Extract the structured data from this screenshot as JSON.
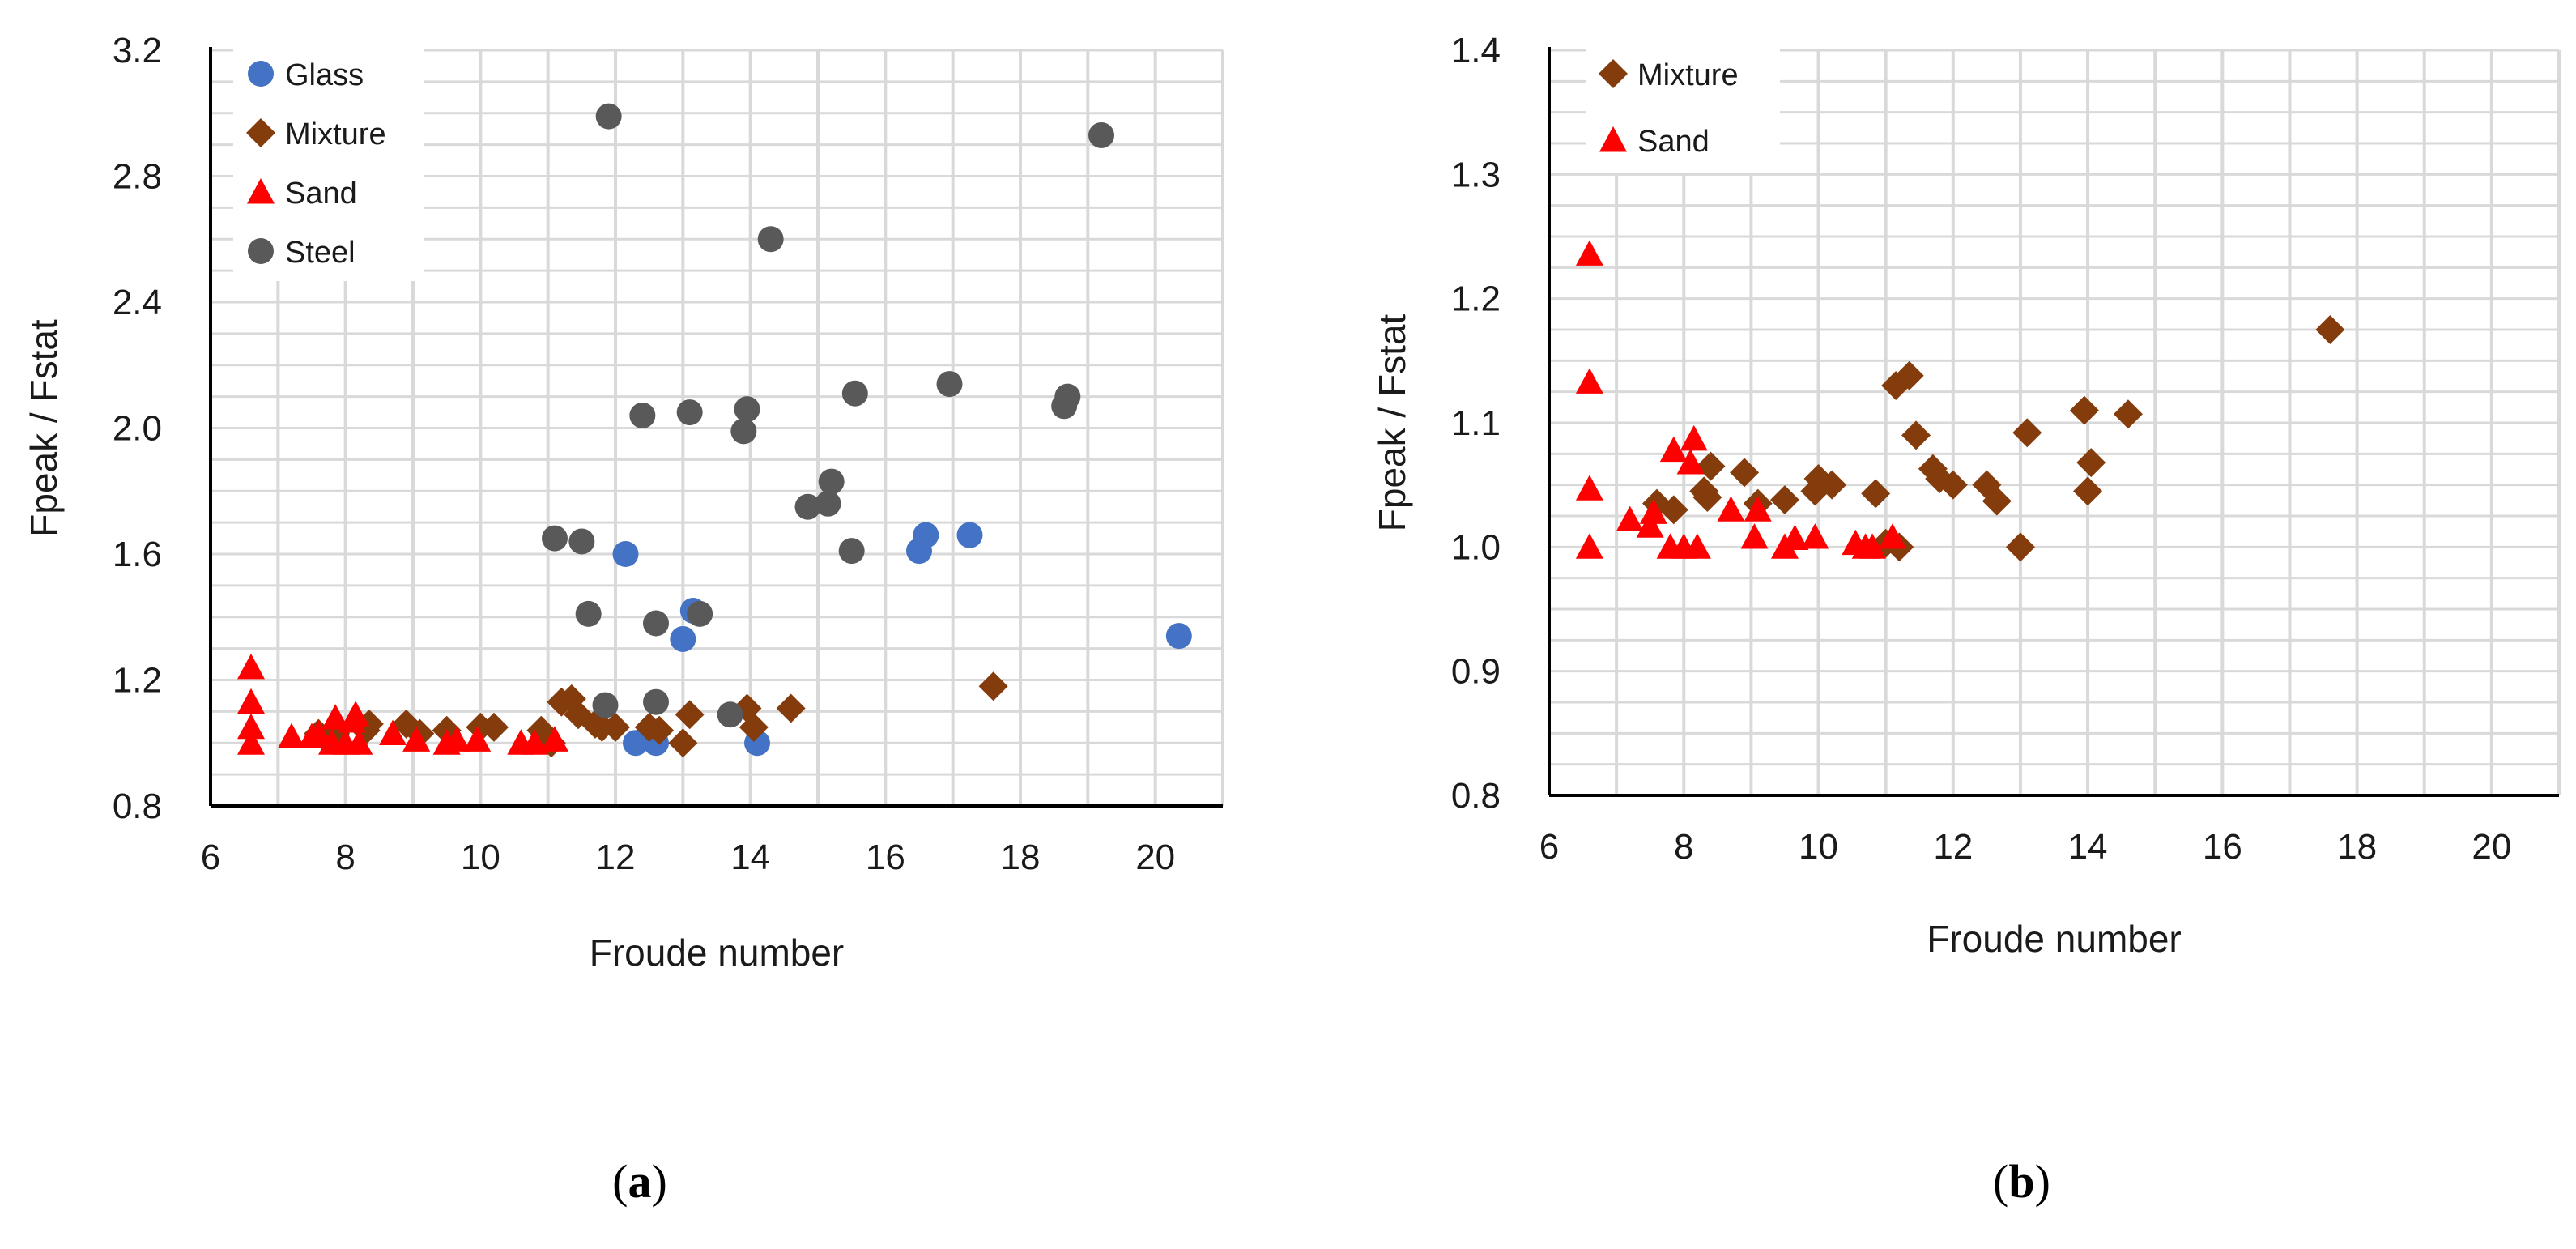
{
  "colors": {
    "Glass": "#4472c4",
    "Mixture": "#843c0c",
    "Sand": "#ff0000",
    "Steel": "#595959",
    "grid": "#d9d9d9",
    "axis": "#000000"
  },
  "chart_data": [
    {
      "type": "scatter",
      "panel_label": {
        "open": "(",
        "letter": "a",
        "close": ")"
      },
      "xlabel": "Froude number",
      "ylabel": "Fpeak / Fstat",
      "xlim": [
        6,
        21
      ],
      "ylim": [
        0.8,
        3.2
      ],
      "x_ticks": [
        6,
        8,
        10,
        12,
        14,
        16,
        18,
        20
      ],
      "x_tick_labels": [
        "6",
        "8",
        "10",
        "12",
        "14",
        "16",
        "18",
        "20"
      ],
      "y_ticks": [
        0.8,
        1.2,
        1.6,
        2.0,
        2.4,
        2.8,
        3.2
      ],
      "y_tick_labels": [
        "0.8",
        "1.2",
        "1.6",
        "2.0",
        "2.4",
        "2.8",
        "3.2"
      ],
      "x_grid_step": 1,
      "y_grid_step": 0.1,
      "legend": {
        "position": "top-left",
        "entries": [
          "Glass",
          "Mixture",
          "Sand",
          "Steel"
        ]
      },
      "series": [
        {
          "name": "Glass",
          "marker": "circle",
          "x": [
            12.15,
            13.0,
            13.15,
            12.3,
            12.6,
            14.1,
            16.5,
            16.6,
            17.25,
            20.35
          ],
          "y": [
            1.6,
            1.33,
            1.42,
            1.0,
            1.0,
            1.0,
            1.61,
            1.66,
            1.66,
            1.34
          ]
        },
        {
          "name": "Mixture",
          "marker": "diamond",
          "x": [
            7.6,
            7.85,
            8.3,
            8.35,
            8.9,
            9.1,
            9.5,
            10.0,
            10.2,
            10.9,
            11.05,
            11.2,
            11.35,
            11.45,
            11.7,
            11.8,
            12.0,
            12.5,
            12.65,
            13.0,
            13.1,
            13.95,
            14.05,
            14.6,
            17.6
          ],
          "y": [
            1.03,
            1.03,
            1.04,
            1.06,
            1.06,
            1.03,
            1.04,
            1.05,
            1.05,
            1.04,
            1.0,
            1.13,
            1.14,
            1.09,
            1.06,
            1.05,
            1.05,
            1.05,
            1.04,
            1.0,
            1.09,
            1.11,
            1.05,
            1.11,
            1.18
          ]
        },
        {
          "name": "Sand",
          "marker": "triangle",
          "x": [
            6.6,
            6.6,
            6.6,
            6.6,
            7.2,
            7.5,
            7.6,
            7.8,
            7.85,
            8.0,
            8.1,
            8.15,
            8.2,
            8.7,
            9.05,
            9.5,
            9.65,
            9.95,
            10.6,
            10.8,
            11.1
          ],
          "y": [
            1.0,
            1.05,
            1.13,
            1.24,
            1.02,
            1.02,
            1.03,
            1.0,
            1.08,
            1.0,
            1.07,
            1.09,
            1.0,
            1.03,
            1.01,
            1.0,
            1.01,
            1.01,
            1.0,
            1.0,
            1.01
          ]
        },
        {
          "name": "Steel",
          "marker": "circle",
          "x": [
            11.1,
            11.5,
            11.6,
            11.85,
            11.9,
            12.4,
            12.6,
            12.6,
            13.1,
            13.25,
            13.7,
            13.9,
            13.95,
            14.3,
            14.85,
            15.15,
            15.2,
            15.5,
            15.55,
            16.95,
            18.65,
            18.7,
            19.2
          ],
          "y": [
            1.65,
            1.64,
            1.41,
            1.12,
            2.99,
            2.04,
            1.38,
            1.13,
            2.05,
            1.41,
            1.09,
            1.99,
            2.06,
            2.6,
            1.75,
            1.76,
            1.83,
            1.61,
            2.11,
            2.14,
            2.07,
            2.1,
            2.93
          ]
        }
      ]
    },
    {
      "type": "scatter",
      "panel_label": {
        "open": "(",
        "letter": "b",
        "close": ")"
      },
      "xlabel": "Froude number",
      "ylabel": "Fpeak / Fstat",
      "xlim": [
        6,
        21
      ],
      "ylim": [
        0.8,
        1.4
      ],
      "x_ticks": [
        6,
        8,
        10,
        12,
        14,
        16,
        18,
        20
      ],
      "x_tick_labels": [
        "6",
        "8",
        "10",
        "12",
        "14",
        "16",
        "18",
        "20"
      ],
      "y_ticks": [
        0.8,
        0.9,
        1.0,
        1.1,
        1.2,
        1.3,
        1.4
      ],
      "y_tick_labels": [
        "0.8",
        "0.9",
        "1.0",
        "1.1",
        "1.2",
        "1.3",
        "1.4"
      ],
      "x_grid_step": 1,
      "y_grid_step": 0.025,
      "legend": {
        "position": "top-left",
        "entries": [
          "Mixture",
          "Sand"
        ]
      },
      "series": [
        {
          "name": "Mixture",
          "marker": "diamond",
          "x": [
            7.6,
            7.85,
            8.3,
            8.35,
            8.4,
            8.9,
            9.1,
            9.5,
            9.95,
            10.0,
            10.2,
            10.85,
            11.0,
            11.15,
            11.2,
            11.35,
            11.45,
            11.7,
            11.8,
            12.0,
            12.5,
            12.65,
            13.0,
            13.1,
            13.95,
            14.0,
            14.05,
            14.6,
            17.6
          ],
          "y": [
            1.035,
            1.03,
            1.045,
            1.04,
            1.065,
            1.06,
            1.035,
            1.038,
            1.045,
            1.055,
            1.05,
            1.043,
            1.003,
            1.13,
            1.0,
            1.138,
            1.09,
            1.063,
            1.055,
            1.05,
            1.05,
            1.037,
            1.0,
            1.092,
            1.11,
            1.045,
            1.068,
            1.107,
            1.175
          ]
        },
        {
          "name": "Sand",
          "marker": "triangle",
          "x": [
            6.6,
            6.6,
            6.6,
            6.6,
            7.2,
            7.5,
            7.55,
            7.8,
            7.85,
            8.0,
            8.1,
            8.15,
            8.2,
            8.7,
            9.05,
            9.1,
            9.5,
            9.65,
            9.95,
            10.55,
            10.7,
            10.8,
            11.1
          ],
          "y": [
            1.0,
            1.047,
            1.133,
            1.236,
            1.022,
            1.017,
            1.028,
            1.0,
            1.078,
            1.0,
            1.068,
            1.087,
            1.0,
            1.03,
            1.008,
            1.03,
            1.0,
            1.007,
            1.008,
            1.003,
            1.0,
            1.0,
            1.008
          ]
        }
      ]
    }
  ]
}
